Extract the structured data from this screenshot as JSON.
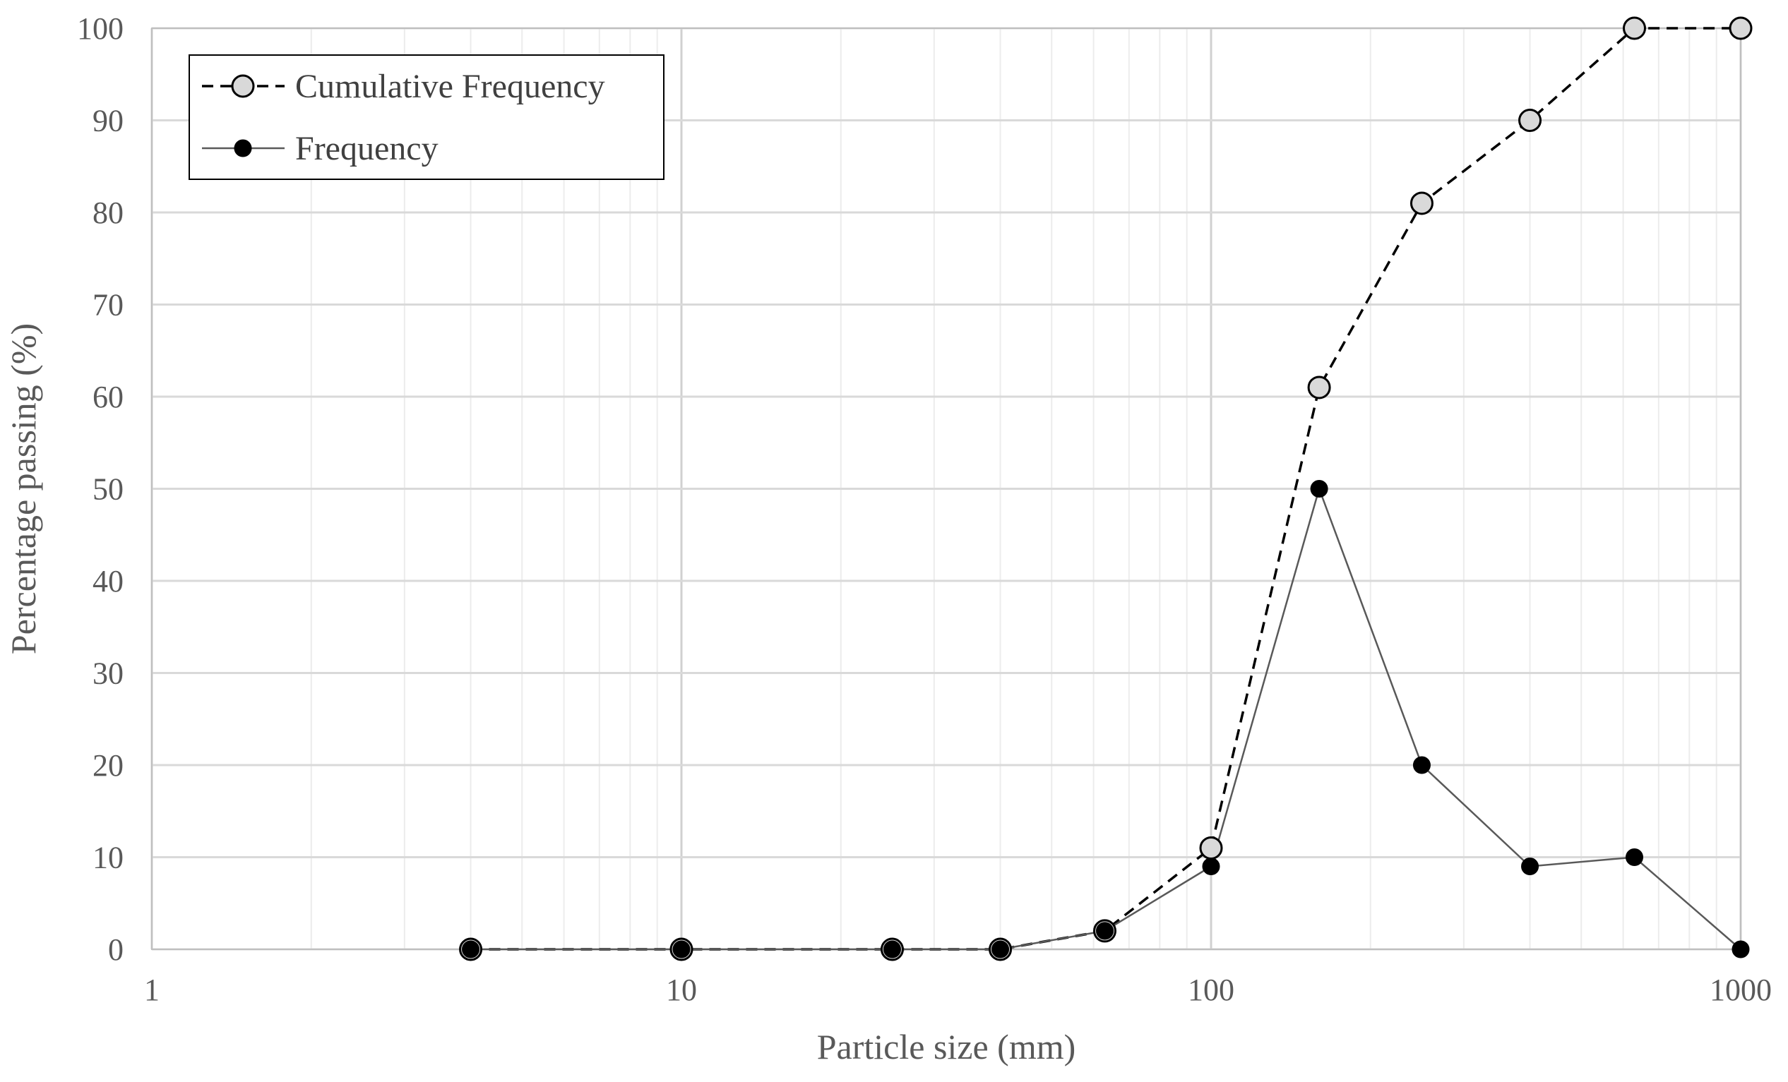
{
  "chart_data": {
    "type": "line",
    "x_scale": "log",
    "xlabel": "Particle size (mm)",
    "ylabel": "Percentage passing (%)",
    "xlim": [
      1,
      1000
    ],
    "ylim": [
      0,
      100
    ],
    "x_tick_labels": [
      "1",
      "10",
      "100",
      "1000"
    ],
    "y_tick_labels": [
      "0",
      "10",
      "20",
      "30",
      "40",
      "50",
      "60",
      "70",
      "80",
      "90",
      "100"
    ],
    "grid": true,
    "legend_position": "top-left",
    "series": [
      {
        "name": "Cumulative Frequency",
        "line_style": "dashed",
        "marker_fill": "#d9d9d9",
        "x": [
          4,
          10,
          25,
          40,
          63,
          100,
          160,
          250,
          400,
          630,
          1000
        ],
        "y": [
          0,
          0,
          0,
          0,
          2,
          11,
          61,
          81,
          90,
          100,
          100
        ]
      },
      {
        "name": "Frequency",
        "line_style": "solid",
        "marker_fill": "#000000",
        "x": [
          4,
          10,
          25,
          40,
          63,
          100,
          160,
          250,
          400,
          630,
          1000
        ],
        "y": [
          0,
          0,
          0,
          0,
          2,
          9,
          50,
          20,
          9,
          10,
          0
        ]
      }
    ]
  }
}
